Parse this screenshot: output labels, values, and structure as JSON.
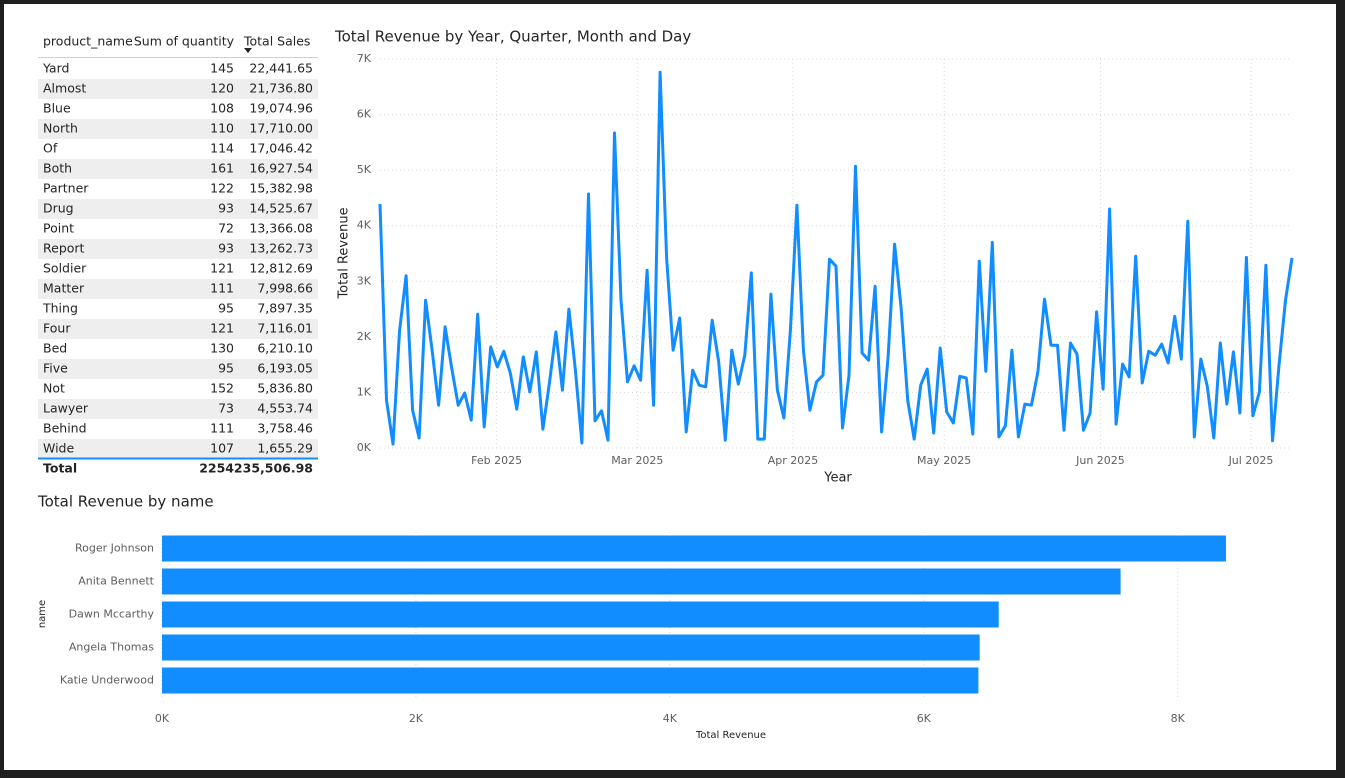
{
  "table": {
    "columns": [
      "product_name",
      "Sum of quantity",
      "Total Sales"
    ],
    "rows": [
      [
        "Yard",
        145,
        "22,441.65"
      ],
      [
        "Almost",
        120,
        "21,736.80"
      ],
      [
        "Blue",
        108,
        "19,074.96"
      ],
      [
        "North",
        110,
        "17,710.00"
      ],
      [
        "Of",
        114,
        "17,046.42"
      ],
      [
        "Both",
        161,
        "16,927.54"
      ],
      [
        "Partner",
        122,
        "15,382.98"
      ],
      [
        "Drug",
        93,
        "14,525.67"
      ],
      [
        "Point",
        72,
        "13,366.08"
      ],
      [
        "Report",
        93,
        "13,262.73"
      ],
      [
        "Soldier",
        121,
        "12,812.69"
      ],
      [
        "Matter",
        111,
        "7,998.66"
      ],
      [
        "Thing",
        95,
        "7,897.35"
      ],
      [
        "Four",
        121,
        "7,116.01"
      ],
      [
        "Bed",
        130,
        "6,210.10"
      ],
      [
        "Five",
        95,
        "6,193.05"
      ],
      [
        "Not",
        152,
        "5,836.80"
      ],
      [
        "Lawyer",
        73,
        "4,553.74"
      ],
      [
        "Behind",
        111,
        "3,758.46"
      ],
      [
        "Wide",
        107,
        "1,655.29"
      ]
    ],
    "total": [
      "Total",
      2254,
      "235,506.98"
    ]
  },
  "chart_data": [
    {
      "type": "line",
      "title": "Total Revenue by Year, Quarter, Month and Day",
      "x_label": "Year",
      "y_label": "Total Revenue",
      "color": "#118DFF",
      "values": [
        4390,
        860,
        70,
        2100,
        3100,
        680,
        180,
        2660,
        1760,
        770,
        2180,
        1440,
        770,
        990,
        500,
        2410,
        380,
        1820,
        1460,
        1740,
        1350,
        700,
        1640,
        1010,
        1730,
        340,
        1170,
        2090,
        1040,
        2500,
        1400,
        90,
        4570,
        490,
        670,
        140,
        5670,
        2660,
        1190,
        1480,
        1220,
        3200,
        770,
        6760,
        3420,
        1760,
        2340,
        290,
        1400,
        1130,
        1100,
        2300,
        1550,
        140,
        1760,
        1150,
        1670,
        3150,
        160,
        160,
        2770,
        1040,
        540,
        2120,
        4370,
        1760,
        680,
        1190,
        1310,
        3400,
        3270,
        360,
        1310,
        5070,
        1710,
        1580,
        2910,
        290,
        1640,
        3670,
        2520,
        860,
        160,
        1130,
        1420,
        270,
        1800,
        650,
        450,
        1290,
        1260,
        250,
        3360,
        1380,
        3700,
        200,
        400,
        1760,
        200,
        790,
        770,
        1370,
        2680,
        1850,
        1850,
        320,
        1890,
        1690,
        320,
        630,
        2450,
        1060,
        4300,
        430,
        1510,
        1280,
        3450,
        1170,
        1740,
        1670,
        1870,
        1530,
        2370,
        1600,
        4080,
        200,
        1600,
        1110,
        180,
        1890,
        790,
        1730,
        630,
        3430,
        580,
        1010,
        3290,
        130,
        1490,
        2660,
        3420
      ],
      "xlim": [
        0,
        140
      ],
      "xticks": [
        {
          "value": 17.9,
          "label": "Feb 2025"
        },
        {
          "value": 39.5,
          "label": "Mar 2025"
        },
        {
          "value": 63.4,
          "label": "Apr 2025"
        },
        {
          "value": 86.6,
          "label": "May 2025"
        },
        {
          "value": 110.6,
          "label": "Jun 2025"
        },
        {
          "value": 133.7,
          "label": "Jul 2025"
        }
      ],
      "ylim": [
        0,
        7000
      ],
      "yticks": [
        {
          "value": 0,
          "label": "0K"
        },
        {
          "value": 1000,
          "label": "1K"
        },
        {
          "value": 2000,
          "label": "2K"
        },
        {
          "value": 3000,
          "label": "3K"
        },
        {
          "value": 4000,
          "label": "4K"
        },
        {
          "value": 5000,
          "label": "5K"
        },
        {
          "value": 6000,
          "label": "6K"
        },
        {
          "value": 7000,
          "label": "7K"
        }
      ],
      "grid": true
    },
    {
      "type": "bar",
      "orientation": "horizontal",
      "title": "Total Revenue by name",
      "x_label": "Total Revenue",
      "y_label": "name",
      "color": "#118DFF",
      "categories": [
        "Roger Johnson",
        "Anita Bennett",
        "Dawn Mccarthy",
        "Angela Thomas",
        "Katie Underwood"
      ],
      "values": [
        8380,
        7550,
        6590,
        6440,
        6430
      ],
      "xlim": [
        0,
        8900
      ],
      "xticks": [
        {
          "value": 0,
          "label": "0K"
        },
        {
          "value": 2000,
          "label": "2K"
        },
        {
          "value": 4000,
          "label": "4K"
        },
        {
          "value": 6000,
          "label": "6K"
        },
        {
          "value": 8000,
          "label": "8K"
        }
      ],
      "grid": true
    }
  ]
}
